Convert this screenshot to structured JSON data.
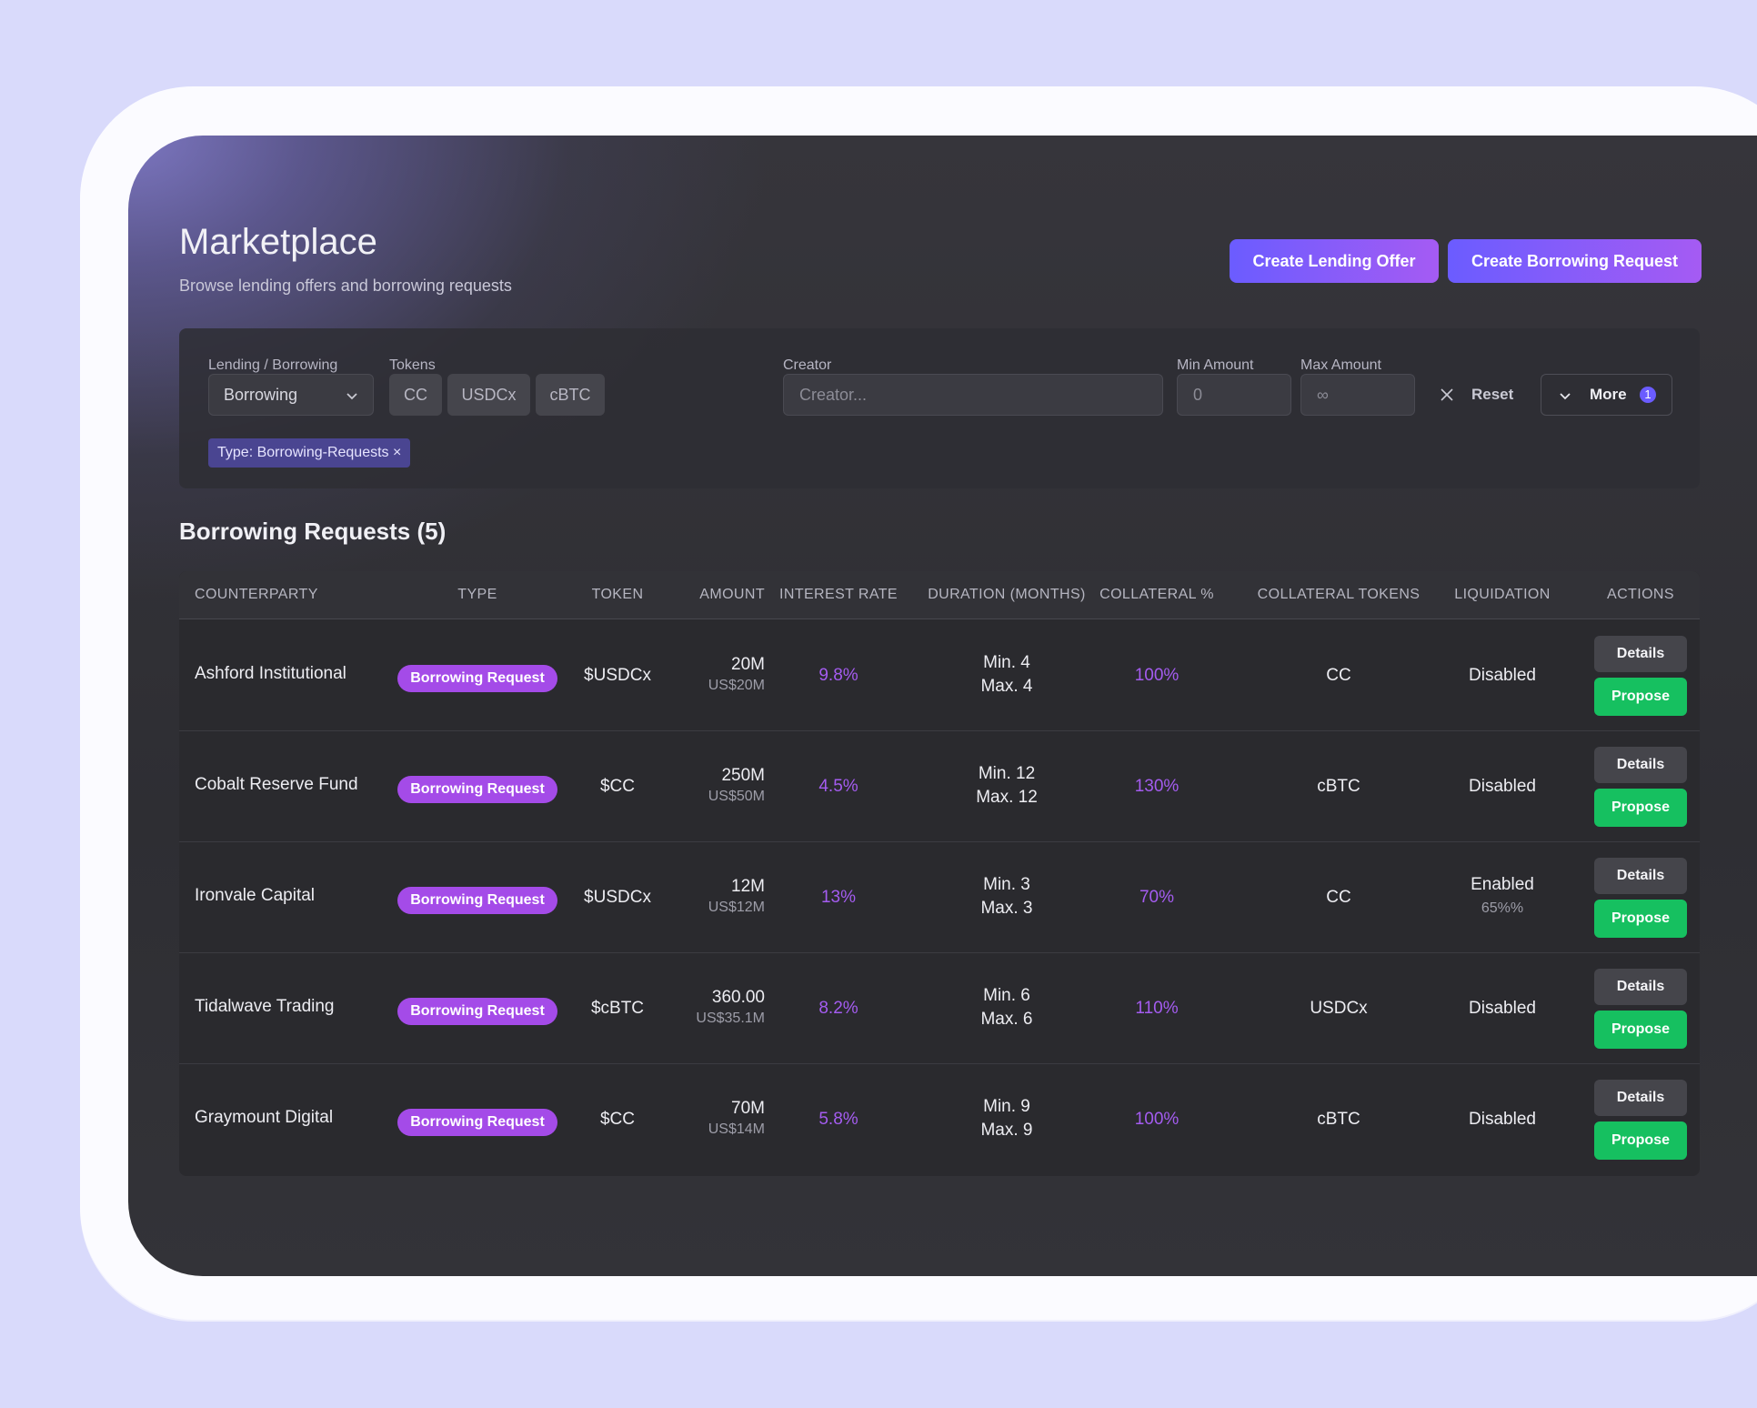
{
  "page": {
    "title": "Marketplace",
    "subtitle": "Browse lending offers and borrowing requests",
    "create_lending_label": "Create Lending Offer",
    "create_borrowing_label": "Create Borrowing Request"
  },
  "filters": {
    "lending_borrowing_label": "Lending / Borrowing",
    "lending_borrowing_value": "Borrowing",
    "tokens_label": "Tokens",
    "tokens": [
      "CC",
      "USDCx",
      "cBTC"
    ],
    "creator_label": "Creator",
    "creator_placeholder": "Creator...",
    "min_amount_label": "Min Amount",
    "min_amount_placeholder": "0",
    "max_amount_label": "Max Amount",
    "max_amount_placeholder": "∞",
    "reset_label": "Reset",
    "more_label": "More",
    "more_count": "1",
    "active_filter": "Type: Borrowing-Requests ×"
  },
  "section": {
    "title": "Borrowing Requests (5)"
  },
  "table": {
    "headers": [
      "COUNTERPARTY",
      "TYPE",
      "TOKEN",
      "AMOUNT",
      "INTEREST RATE",
      "DURATION (MONTHS)",
      "COLLATERAL %",
      "COLLATERAL TOKENS",
      "LIQUIDATION",
      "ACTIONS"
    ],
    "rows": [
      {
        "counterparty": "Ashford Institutional",
        "type": "Borrowing Request",
        "token": "$USDCx",
        "amount": "20M",
        "amount_usd": "US$20M",
        "rate": "9.8%",
        "dur_min": "Min. 4",
        "dur_max": "Max. 4",
        "collateral": "100%",
        "collateral_tokens": "CC",
        "liquidation": "Disabled",
        "liquidation_sub": "",
        "details": "Details",
        "propose": "Propose"
      },
      {
        "counterparty": "Cobalt Reserve Fund",
        "type": "Borrowing Request",
        "token": "$CC",
        "amount": "250M",
        "amount_usd": "US$50M",
        "rate": "4.5%",
        "dur_min": "Min. 12",
        "dur_max": "Max. 12",
        "collateral": "130%",
        "collateral_tokens": "cBTC",
        "liquidation": "Disabled",
        "liquidation_sub": "",
        "details": "Details",
        "propose": "Propose"
      },
      {
        "counterparty": "Ironvale Capital",
        "type": "Borrowing Request",
        "token": "$USDCx",
        "amount": "12M",
        "amount_usd": "US$12M",
        "rate": "13%",
        "dur_min": "Min. 3",
        "dur_max": "Max. 3",
        "collateral": "70%",
        "collateral_tokens": "CC",
        "liquidation": "Enabled",
        "liquidation_sub": "65%%",
        "details": "Details",
        "propose": "Propose"
      },
      {
        "counterparty": "Tidalwave Trading",
        "type": "Borrowing Request",
        "token": "$cBTC",
        "amount": "360.00",
        "amount_usd": "US$35.1M",
        "rate": "8.2%",
        "dur_min": "Min. 6",
        "dur_max": "Max. 6",
        "collateral": "110%",
        "collateral_tokens": "USDCx",
        "liquidation": "Disabled",
        "liquidation_sub": "",
        "details": "Details",
        "propose": "Propose"
      },
      {
        "counterparty": "Graymount Digital",
        "type": "Borrowing Request",
        "token": "$CC",
        "amount": "70M",
        "amount_usd": "US$14M",
        "rate": "5.8%",
        "dur_min": "Min. 9",
        "dur_max": "Max. 9",
        "collateral": "100%",
        "collateral_tokens": "cBTC",
        "liquidation": "Disabled",
        "liquidation_sub": "",
        "details": "Details",
        "propose": "Propose"
      }
    ]
  },
  "colors": {
    "accent_gradient_start": "#6b5cff",
    "accent_gradient_end": "#a55bf3",
    "badge": "#a44be8",
    "propose": "#16c060",
    "highlight_text": "#a45cf0"
  }
}
